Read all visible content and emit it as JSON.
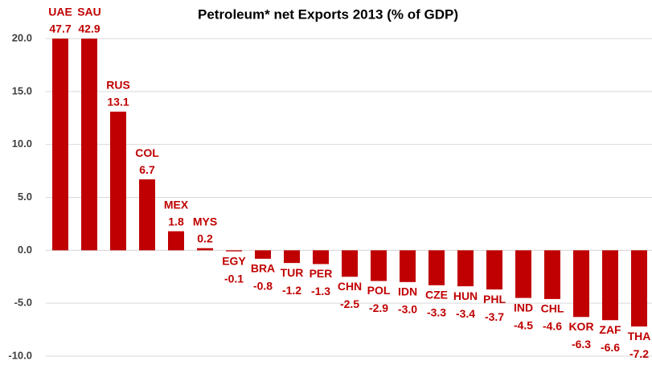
{
  "chart_data": {
    "type": "bar",
    "title": "Petroleum* net Exports 2013 (% of GDP)",
    "categories": [
      "UAE",
      "SAU",
      "RUS",
      "COL",
      "MEX",
      "MYS",
      "EGY",
      "BRA",
      "TUR",
      "PER",
      "CHN",
      "POL",
      "IDN",
      "CZE",
      "HUN",
      "PHL",
      "IND",
      "CHL",
      "KOR",
      "ZAF",
      "THA"
    ],
    "values": [
      47.7,
      42.9,
      13.1,
      6.7,
      1.8,
      0.2,
      -0.1,
      -0.8,
      -1.2,
      -1.3,
      -2.5,
      -2.9,
      -3.0,
      -3.3,
      -3.4,
      -3.7,
      -4.5,
      -4.6,
      -6.3,
      -6.6,
      -7.2
    ],
    "value_labels": [
      "47.7",
      "42.9",
      "13.1",
      "6.7",
      "1.8",
      "0.2",
      "-0.1",
      "-0.8",
      "-1.2",
      "-1.3",
      "-2.5",
      "-2.9",
      "-3.0",
      "-3.3",
      "-3.4",
      "-3.7",
      "-4.5",
      "-4.6",
      "-6.3",
      "-6.6",
      "-7.2"
    ],
    "color": "#c00000",
    "ylim": [
      -10,
      20
    ],
    "yticks": [
      {
        "value": -10,
        "label": "-10.0"
      },
      {
        "value": -5,
        "label": "-5.0"
      },
      {
        "value": 0,
        "label": "0.0"
      },
      {
        "value": 5,
        "label": "5.0"
      },
      {
        "value": 10,
        "label": "10.0"
      },
      {
        "value": 15,
        "label": "15.0"
      },
      {
        "value": 20,
        "label": "20.0"
      }
    ],
    "grid": true
  }
}
